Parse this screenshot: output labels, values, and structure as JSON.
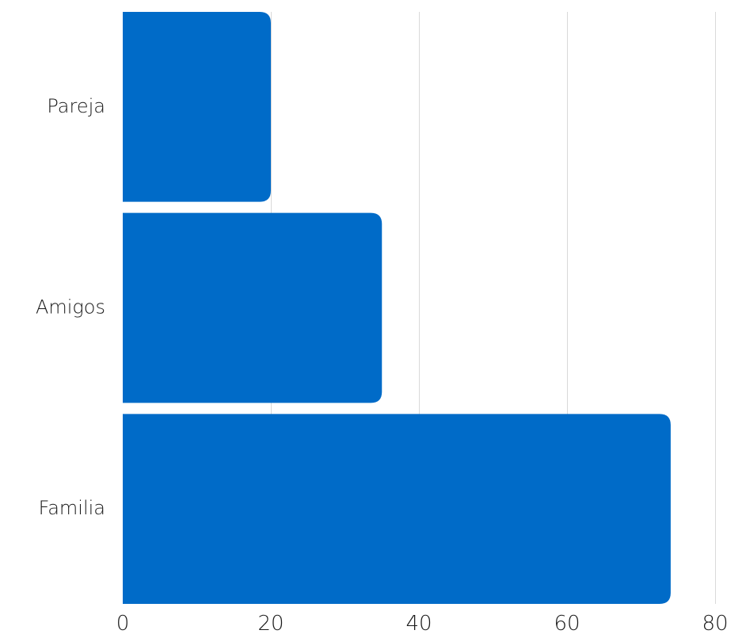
{
  "chart_data": {
    "type": "bar",
    "orientation": "horizontal",
    "categories": [
      "Pareja",
      "Amigos",
      "Familia"
    ],
    "values": [
      20,
      35,
      74
    ],
    "xlim": [
      0,
      80
    ],
    "xticks": [
      0,
      20,
      40,
      60,
      80
    ],
    "grid": true,
    "bar_color": "#006BC8",
    "grid_color": "#D9D9D9"
  }
}
